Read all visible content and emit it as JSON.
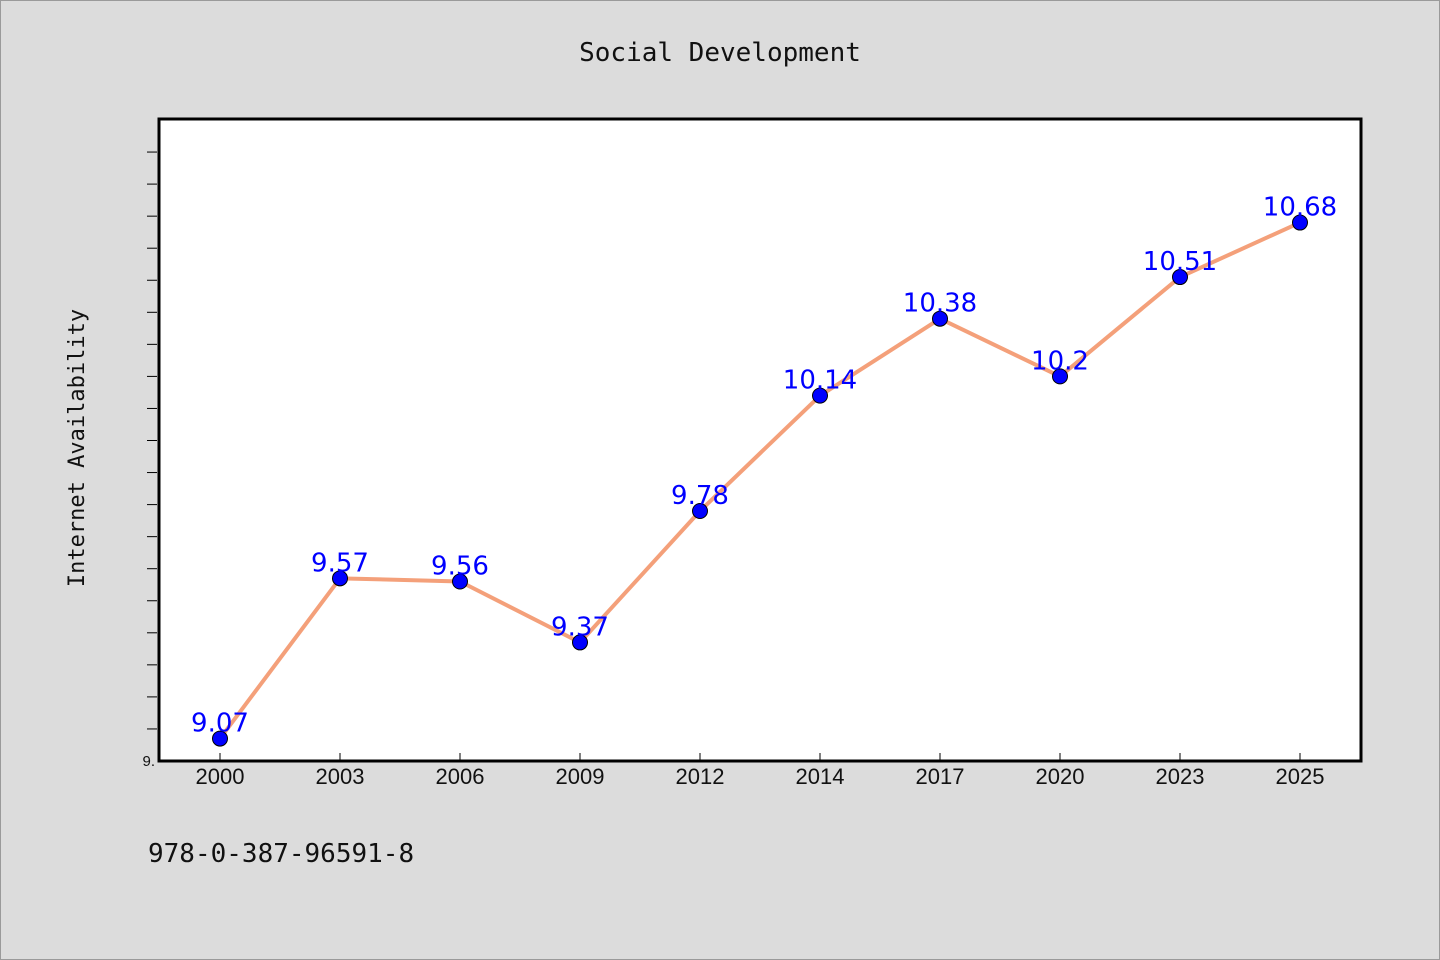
{
  "chart_data": {
    "type": "line",
    "title": "Social Development",
    "xlabel": "",
    "ylabel": "Internet Availability",
    "categories": [
      "2000",
      "2003",
      "2006",
      "2009",
      "2012",
      "2014",
      "2017",
      "2020",
      "2023",
      "2025"
    ],
    "series": [
      {
        "name": "",
        "values": [
          9.07,
          9.57,
          9.56,
          9.37,
          9.78,
          10.14,
          10.38,
          10.2,
          10.51,
          10.68
        ]
      }
    ],
    "data_labels": [
      "9.07",
      "9.57",
      "9.56",
      "9.37",
      "9.78",
      "10.14",
      "10.38",
      "10.2",
      "10.51",
      "10.68"
    ],
    "ylim": [
      9.0,
      11.0
    ],
    "yticks_visible": [
      "9."
    ],
    "grid": false,
    "legend": "none",
    "colors": {
      "line": "#f4a07a",
      "marker": "#0000ff",
      "marker_edge": "#000000",
      "data_label": "#0000ff",
      "plot_background": "#ffffff",
      "figure_background": "#dcdcdc"
    }
  },
  "footnote": "978-0-387-96591-8"
}
